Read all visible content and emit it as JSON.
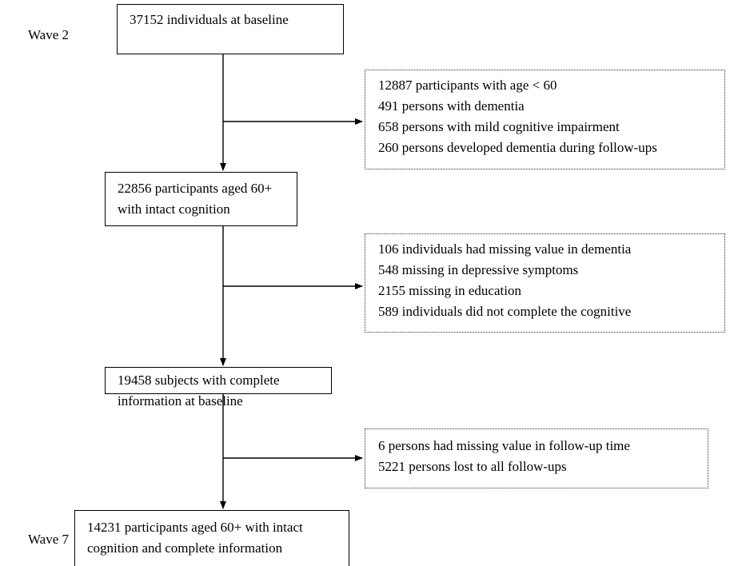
{
  "waves": {
    "start": "Wave 2",
    "end": "Wave 7"
  },
  "main_boxes": [
    {
      "lines": [
        "37152 individuals at baseline"
      ]
    },
    {
      "lines": [
        "22856 participants aged 60+",
        "with intact cognition"
      ]
    },
    {
      "lines": [
        "19458 subjects with complete",
        "information at baseline"
      ]
    },
    {
      "lines": [
        "14231 participants aged 60+ with intact",
        "cognition and complete information"
      ]
    }
  ],
  "exclusion_boxes": [
    {
      "lines": [
        "12887 participants with age < 60",
        "491 persons with dementia",
        "658 persons with mild cognitive impairment",
        "260 persons developed dementia during follow-ups"
      ]
    },
    {
      "lines": [
        "106 individuals had missing value in dementia",
        "548 missing in depressive symptoms",
        "2155 missing in education",
        "589 individuals did not complete the cognitive"
      ]
    },
    {
      "lines": [
        "6 persons had missing value in follow-up time",
        "5221 persons lost to all follow-ups"
      ]
    }
  ]
}
